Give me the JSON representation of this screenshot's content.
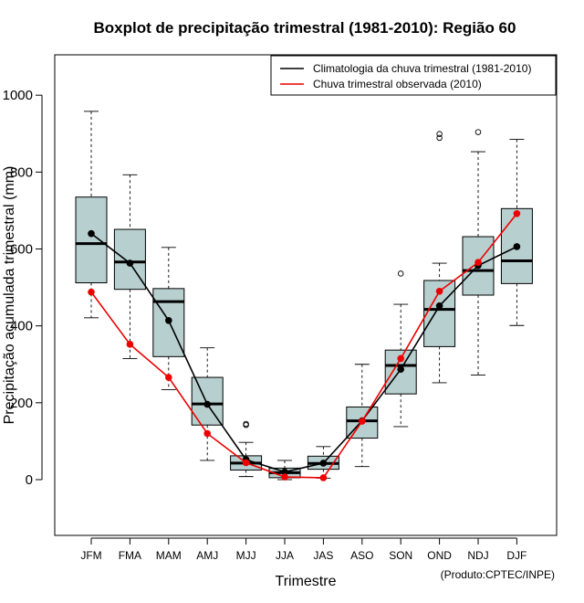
{
  "chart_data": {
    "type": "boxplot",
    "title": "Boxplot de precipitação trimestral (1981-2010): Região 60",
    "xlabel": "Trimestre",
    "ylabel": "Precipitação acumulada trimestral (mm)",
    "ylim": [
      -145,
      1105
    ],
    "yticks": [
      0,
      200,
      400,
      600,
      800,
      1000
    ],
    "credit": "(Produto:CPTEC/INPE)",
    "legend_position": "top-right",
    "categories": [
      "JFM",
      "FMA",
      "MAM",
      "AMJ",
      "MJJ",
      "JJA",
      "JAS",
      "ASO",
      "SON",
      "OND",
      "NDJ",
      "DJF"
    ],
    "boxes": [
      {
        "whisker_low": 421,
        "q1": 512,
        "median": 614,
        "q3": 735,
        "whisker_high": 958,
        "outliers": []
      },
      {
        "whisker_low": 315,
        "q1": 495,
        "median": 566,
        "q3": 651,
        "whisker_high": 793,
        "outliers": []
      },
      {
        "whisker_low": 234,
        "q1": 320,
        "median": 463,
        "q3": 497,
        "whisker_high": 604,
        "outliers": []
      },
      {
        "whisker_low": 50,
        "q1": 142,
        "median": 197,
        "q3": 266,
        "whisker_high": 343,
        "outliers": []
      },
      {
        "whisker_low": 8,
        "q1": 25,
        "median": 43,
        "q3": 62,
        "whisker_high": 97,
        "outliers": [
          145,
          142
        ]
      },
      {
        "whisker_low": 0,
        "q1": 5,
        "median": 18,
        "q3": 30,
        "whisker_high": 50,
        "outliers": []
      },
      {
        "whisker_low": 4,
        "q1": 27,
        "median": 42,
        "q3": 61,
        "whisker_high": 86,
        "outliers": []
      },
      {
        "whisker_low": 34,
        "q1": 108,
        "median": 153,
        "q3": 189,
        "whisker_high": 300,
        "outliers": []
      },
      {
        "whisker_low": 138,
        "q1": 223,
        "median": 297,
        "q3": 337,
        "whisker_high": 456,
        "outliers": [
          536
        ]
      },
      {
        "whisker_low": 252,
        "q1": 346,
        "median": 443,
        "q3": 518,
        "whisker_high": 563,
        "outliers": [
          899,
          889
        ]
      },
      {
        "whisker_low": 272,
        "q1": 480,
        "median": 544,
        "q3": 632,
        "whisker_high": 853,
        "outliers": [
          904
        ]
      },
      {
        "whisker_low": 401,
        "q1": 510,
        "median": 569,
        "q3": 705,
        "whisker_high": 885,
        "outliers": []
      }
    ],
    "series": [
      {
        "name": "Climatologia da chuva trimestral (1981-2010)",
        "color": "#000000",
        "values": [
          640,
          563,
          414,
          196,
          52,
          20,
          43,
          153,
          287,
          452,
          557,
          606
        ]
      },
      {
        "name": "Chuva trimestral observada (2010)",
        "color": "#ee0000",
        "values": [
          488,
          352,
          266,
          120,
          44,
          7,
          5,
          152,
          315,
          490,
          565,
          692
        ]
      }
    ],
    "box_fill": "#b7cfcf"
  }
}
